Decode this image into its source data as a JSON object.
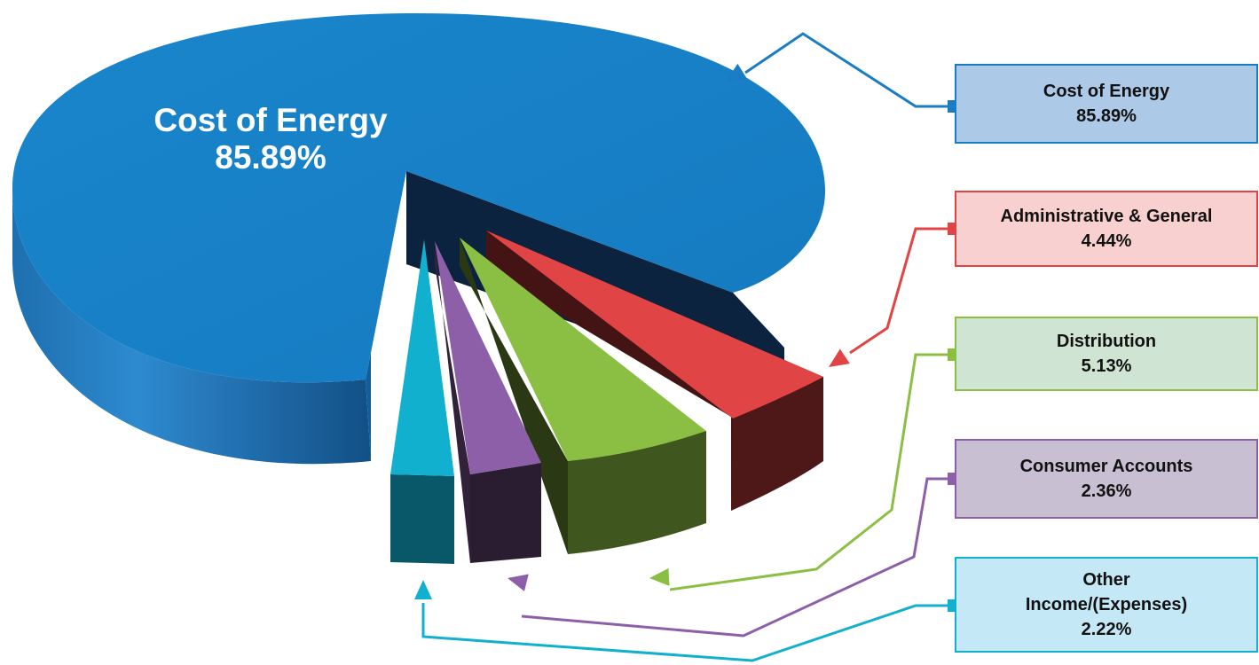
{
  "chart_data": {
    "type": "pie",
    "title": "",
    "style": "3d-exploded",
    "slices": [
      {
        "label": "Cost of Energy",
        "value": 85.89,
        "value_label": "85.89%",
        "color": "#1a7dc4",
        "box_fill": "#acc9e7",
        "box_border": "#1a7dc4"
      },
      {
        "label": "Administrative & General",
        "value": 4.44,
        "value_label": "4.44%",
        "color": "#e14444",
        "box_fill": "#f7d0cf",
        "box_border": "#e14444"
      },
      {
        "label": "Distribution",
        "value": 5.13,
        "value_label": "5.13%",
        "color": "#8bbf44",
        "box_fill": "#cfe4d2",
        "box_border": "#8bbf44"
      },
      {
        "label": "Consumer Accounts",
        "value": 2.36,
        "value_label": "2.36%",
        "color": "#8d5fa8",
        "box_fill": "#c9bfd3",
        "box_border": "#8d5fa8"
      },
      {
        "label": "Other Income/(Expenses)",
        "label_lines": [
          "Other",
          "Income/(Expenses)"
        ],
        "value": 2.22,
        "value_label": "2.22%",
        "color": "#12b0cf",
        "box_fill": "#c5e8f7",
        "box_border": "#12b0cf"
      }
    ],
    "highlight_label": {
      "label": "Cost of Energy",
      "value_label": "85.89%"
    },
    "legend": "right"
  }
}
